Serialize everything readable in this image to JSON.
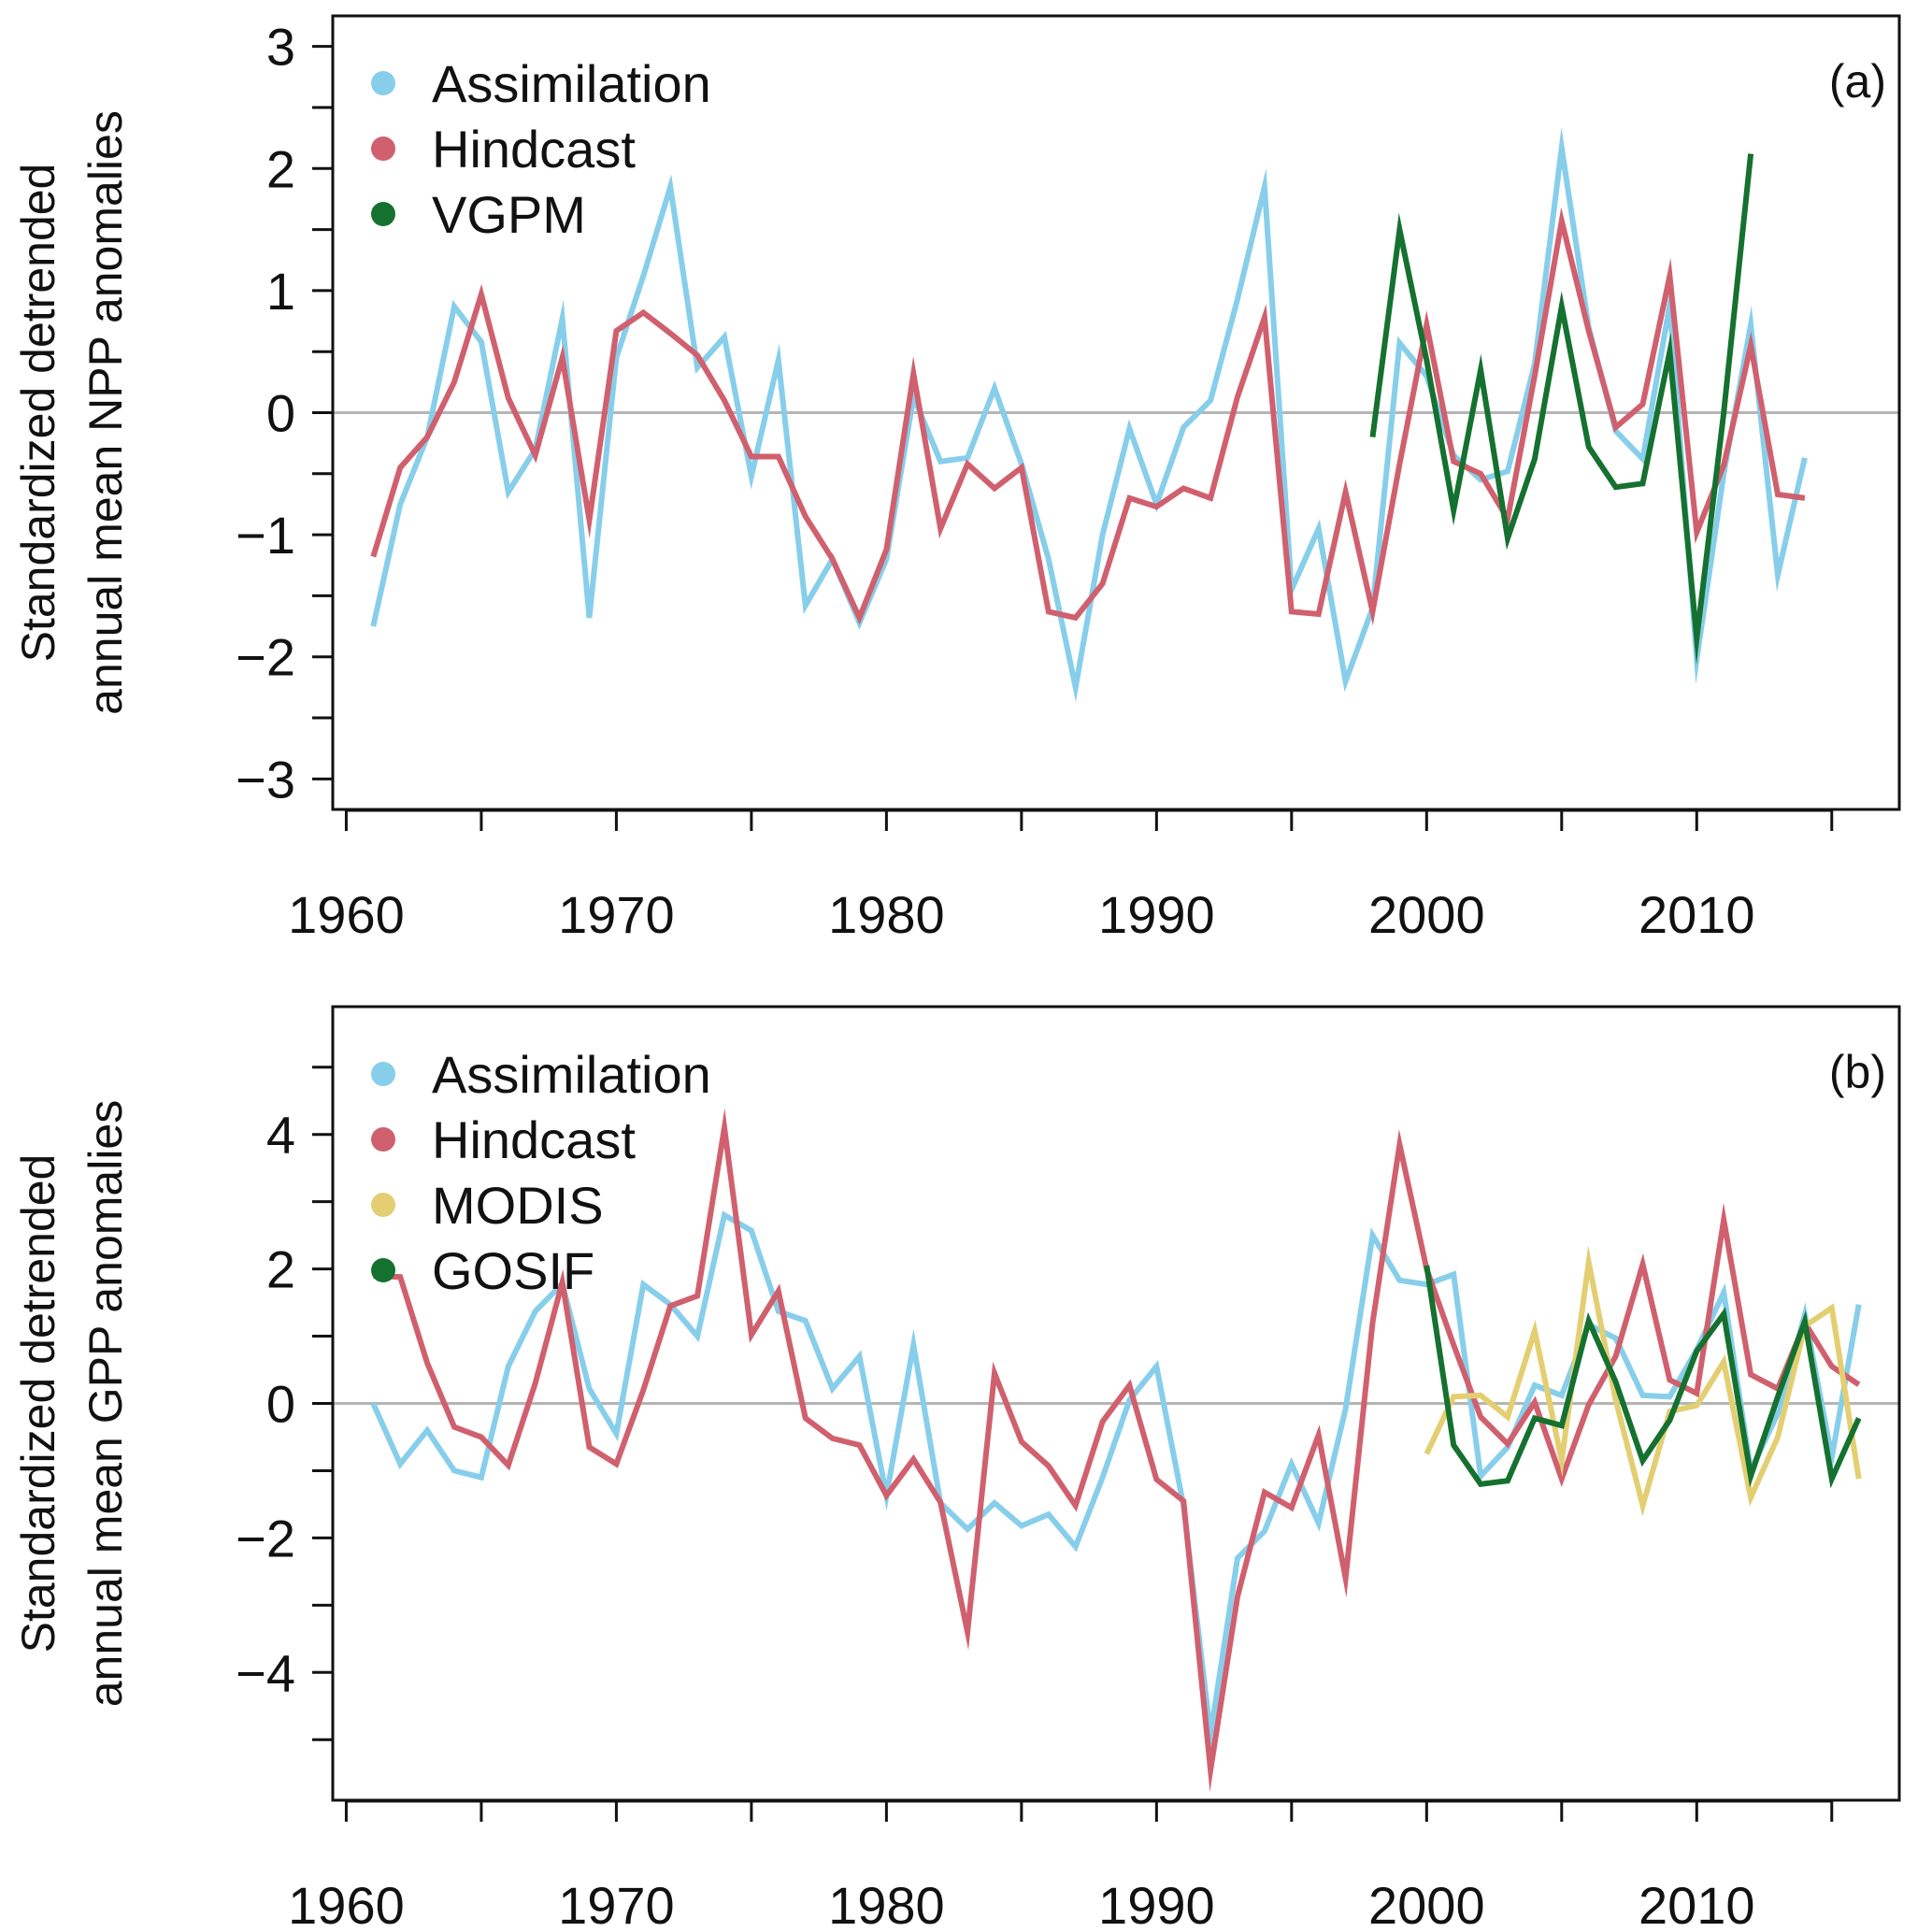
{
  "chart_data": [
    {
      "type": "line",
      "panel_tag": "(a)",
      "ylabel_line1": "Standardized detrended",
      "ylabel_line2": "annual mean NPP anomalies",
      "xlim": [
        1959.5,
        2017.5
      ],
      "ylim": [
        -3.25,
        3.25
      ],
      "xticks": [
        1960,
        1965,
        1970,
        1975,
        1980,
        1985,
        1990,
        1995,
        2000,
        2005,
        2010,
        2015
      ],
      "xtick_labels": [
        "1960",
        "1970",
        "1980",
        "1990",
        "2000",
        "2010"
      ],
      "xtick_label_values": [
        1960,
        1970,
        1980,
        1990,
        2000,
        2010
      ],
      "yticks": [
        -3,
        -2.5,
        -2,
        -1.5,
        -1,
        -0.5,
        0,
        0.5,
        1,
        1.5,
        2,
        2.5,
        3
      ],
      "ytick_labels": [
        "−3",
        "−2",
        "−1",
        "0",
        "1",
        "2",
        "3"
      ],
      "ytick_label_values": [
        -3,
        -2,
        -1,
        0,
        1,
        2,
        3
      ],
      "zero_line": true,
      "legend_position": "top-left",
      "series": [
        {
          "name": "Assimilation",
          "color": "#87ceeb",
          "x": [
            1961,
            1962,
            1963,
            1964,
            1965,
            1966,
            1967,
            1968,
            1969,
            1970,
            1971,
            1972,
            1973,
            1974,
            1975,
            1976,
            1977,
            1978,
            1979,
            1980,
            1981,
            1982,
            1983,
            1984,
            1985,
            1986,
            1987,
            1988,
            1989,
            1990,
            1991,
            1992,
            1993,
            1994,
            1995,
            1996,
            1997,
            1998,
            1999,
            2000,
            2001,
            2002,
            2003,
            2004,
            2005,
            2006,
            2007,
            2008,
            2009,
            2010,
            2011,
            2012,
            2013,
            2014
          ],
          "values": [
            -1.75,
            -0.75,
            -0.2,
            0.87,
            0.58,
            -0.65,
            -0.3,
            0.77,
            -1.68,
            0.45,
            1.12,
            1.85,
            0.37,
            0.62,
            -0.52,
            0.43,
            -1.58,
            -1.2,
            -1.72,
            -1.2,
            0.13,
            -0.4,
            -0.37,
            0.2,
            -0.42,
            -1.2,
            -2.25,
            -1.0,
            -0.13,
            -0.75,
            -0.12,
            0.1,
            0.93,
            1.85,
            -1.45,
            -0.95,
            -2.2,
            -1.6,
            0.57,
            0.3,
            -0.35,
            -0.55,
            -0.48,
            0.4,
            2.17,
            0.7,
            -0.15,
            -0.38,
            0.88,
            -2.02,
            -0.5,
            0.72,
            -1.33,
            -0.37
          ]
        },
        {
          "name": "Hindcast",
          "color": "#d0606e",
          "x": [
            1961,
            1962,
            1963,
            1964,
            1965,
            1966,
            1967,
            1968,
            1969,
            1970,
            1971,
            1972,
            1973,
            1974,
            1975,
            1976,
            1977,
            1978,
            1979,
            1980,
            1981,
            1982,
            1983,
            1984,
            1985,
            1986,
            1987,
            1988,
            1989,
            1990,
            1991,
            1992,
            1993,
            1994,
            1995,
            1996,
            1997,
            1998,
            1999,
            2000,
            2001,
            2002,
            2003,
            2004,
            2005,
            2006,
            2007,
            2008,
            2009,
            2010,
            2011,
            2012,
            2013,
            2014
          ],
          "values": [
            -1.18,
            -0.45,
            -0.2,
            0.25,
            0.97,
            0.12,
            -0.35,
            0.45,
            -0.88,
            0.67,
            0.82,
            0.65,
            0.47,
            0.1,
            -0.36,
            -0.36,
            -0.85,
            -1.2,
            -1.68,
            -1.12,
            0.32,
            -0.95,
            -0.42,
            -0.62,
            -0.45,
            -1.63,
            -1.68,
            -1.4,
            -0.7,
            -0.77,
            -0.62,
            -0.7,
            0.13,
            0.78,
            -1.63,
            -1.65,
            -0.65,
            -1.63,
            -0.42,
            0.72,
            -0.4,
            -0.5,
            -0.87,
            0.3,
            1.57,
            0.67,
            -0.12,
            0.07,
            1.12,
            -0.98,
            -0.43,
            0.55,
            -0.67,
            -0.7
          ]
        },
        {
          "name": "VGPM",
          "color": "#15712f",
          "x": [
            1998,
            1999,
            2000,
            2001,
            2002,
            2003,
            2004,
            2005,
            2006,
            2007,
            2008,
            2009,
            2010,
            2011,
            2012
          ],
          "values": [
            -0.2,
            1.5,
            0.43,
            -0.8,
            0.35,
            -1.03,
            -0.38,
            0.87,
            -0.28,
            -0.61,
            -0.58,
            0.5,
            -1.85,
            0.0,
            2.12
          ]
        }
      ]
    },
    {
      "type": "line",
      "panel_tag": "(b)",
      "ylabel_line1": "Standardized detrended",
      "ylabel_line2": "annual mean GPP anomalies",
      "xlim": [
        1959.5,
        2017.5
      ],
      "ylim": [
        -5.9,
        5.9
      ],
      "xticks": [
        1960,
        1965,
        1970,
        1975,
        1980,
        1985,
        1990,
        1995,
        2000,
        2005,
        2010,
        2015
      ],
      "xtick_labels": [
        "1960",
        "1970",
        "1980",
        "1990",
        "2000",
        "2010"
      ],
      "xtick_label_values": [
        1960,
        1970,
        1980,
        1990,
        2000,
        2010
      ],
      "yticks": [
        -5,
        -4,
        -3,
        -2,
        -1,
        0,
        1,
        2,
        3,
        4,
        5
      ],
      "ytick_labels": [
        "−4",
        "−2",
        "0",
        "2",
        "4"
      ],
      "ytick_label_values": [
        -4,
        -2,
        0,
        2,
        4
      ],
      "zero_line": true,
      "legend_position": "top-left",
      "series": [
        {
          "name": "Assimilation",
          "color": "#87ceeb",
          "x": [
            1961,
            1962,
            1963,
            1964,
            1965,
            1966,
            1967,
            1968,
            1969,
            1970,
            1971,
            1972,
            1973,
            1974,
            1975,
            1976,
            1977,
            1978,
            1979,
            1980,
            1981,
            1982,
            1983,
            1984,
            1985,
            1986,
            1987,
            1988,
            1989,
            1990,
            1991,
            1992,
            1993,
            1994,
            1995,
            1996,
            1997,
            1998,
            1999,
            2000,
            2001,
            2002,
            2003,
            2004,
            2005,
            2006,
            2007,
            2008,
            2009,
            2010,
            2011,
            2012,
            2013,
            2014,
            2015,
            2016
          ],
          "values": [
            0.0,
            -0.9,
            -0.4,
            -1.0,
            -1.1,
            0.55,
            1.37,
            1.78,
            0.22,
            -0.45,
            1.77,
            1.47,
            1.0,
            2.8,
            2.57,
            1.37,
            1.23,
            0.22,
            0.7,
            -1.37,
            0.87,
            -1.48,
            -1.87,
            -1.48,
            -1.82,
            -1.65,
            -2.13,
            -1.1,
            0.05,
            0.55,
            -1.52,
            -4.92,
            -2.3,
            -1.9,
            -0.9,
            -1.78,
            -0.08,
            2.5,
            1.83,
            1.77,
            1.92,
            -1.08,
            -0.65,
            0.27,
            0.12,
            1.17,
            0.97,
            0.12,
            0.1,
            0.8,
            1.65,
            -1.0,
            -0.15,
            1.32,
            -0.8,
            1.47
          ]
        },
        {
          "name": "Hindcast",
          "color": "#d0606e",
          "x": [
            1961,
            1962,
            1963,
            1964,
            1965,
            1966,
            1967,
            1968,
            1969,
            1970,
            1971,
            1972,
            1973,
            1974,
            1975,
            1976,
            1977,
            1978,
            1979,
            1980,
            1981,
            1982,
            1983,
            1984,
            1985,
            1986,
            1987,
            1988,
            1989,
            1990,
            1991,
            1992,
            1993,
            1994,
            1995,
            1996,
            1997,
            1998,
            1999,
            2000,
            2001,
            2002,
            2003,
            2004,
            2005,
            2006,
            2007,
            2008,
            2009,
            2010,
            2011,
            2012,
            2013,
            2014,
            2015,
            2016
          ],
          "values": [
            1.9,
            1.88,
            0.6,
            -0.35,
            -0.5,
            -0.92,
            0.3,
            1.8,
            -0.65,
            -0.9,
            0.2,
            1.45,
            1.6,
            4.1,
            1.02,
            1.67,
            -0.22,
            -0.52,
            -0.62,
            -1.37,
            -0.83,
            -1.47,
            -3.4,
            0.45,
            -0.57,
            -0.93,
            -1.52,
            -0.27,
            0.27,
            -1.13,
            -1.45,
            -5.45,
            -2.87,
            -1.32,
            -1.55,
            -0.47,
            -2.6,
            1.2,
            3.85,
            2.0,
            0.87,
            -0.2,
            -0.6,
            0.02,
            -1.12,
            -0.02,
            0.7,
            2.07,
            0.35,
            0.15,
            2.73,
            0.43,
            0.22,
            1.2,
            0.55,
            0.28
          ]
        },
        {
          "name": "MODIS",
          "color": "#e3cf72",
          "x": [
            2000,
            2001,
            2002,
            2003,
            2004,
            2005,
            2006,
            2007,
            2008,
            2009,
            2010,
            2011,
            2012,
            2013,
            2014,
            2015,
            2016
          ],
          "values": [
            -0.75,
            0.1,
            0.12,
            -0.2,
            1.08,
            -0.85,
            2.1,
            0.05,
            -1.52,
            -0.12,
            -0.03,
            0.62,
            -1.4,
            -0.5,
            1.15,
            1.42,
            -1.12
          ]
        },
        {
          "name": "GOSIF",
          "color": "#15712f",
          "x": [
            2000,
            2001,
            2002,
            2003,
            2004,
            2005,
            2006,
            2007,
            2008,
            2009,
            2010,
            2011,
            2012,
            2013,
            2014,
            2015,
            2016
          ],
          "values": [
            2.05,
            -0.62,
            -1.2,
            -1.15,
            -0.22,
            -0.33,
            1.23,
            0.32,
            -0.85,
            -0.25,
            0.78,
            1.33,
            -1.08,
            0.1,
            1.22,
            -1.12,
            -0.22
          ]
        }
      ]
    }
  ]
}
